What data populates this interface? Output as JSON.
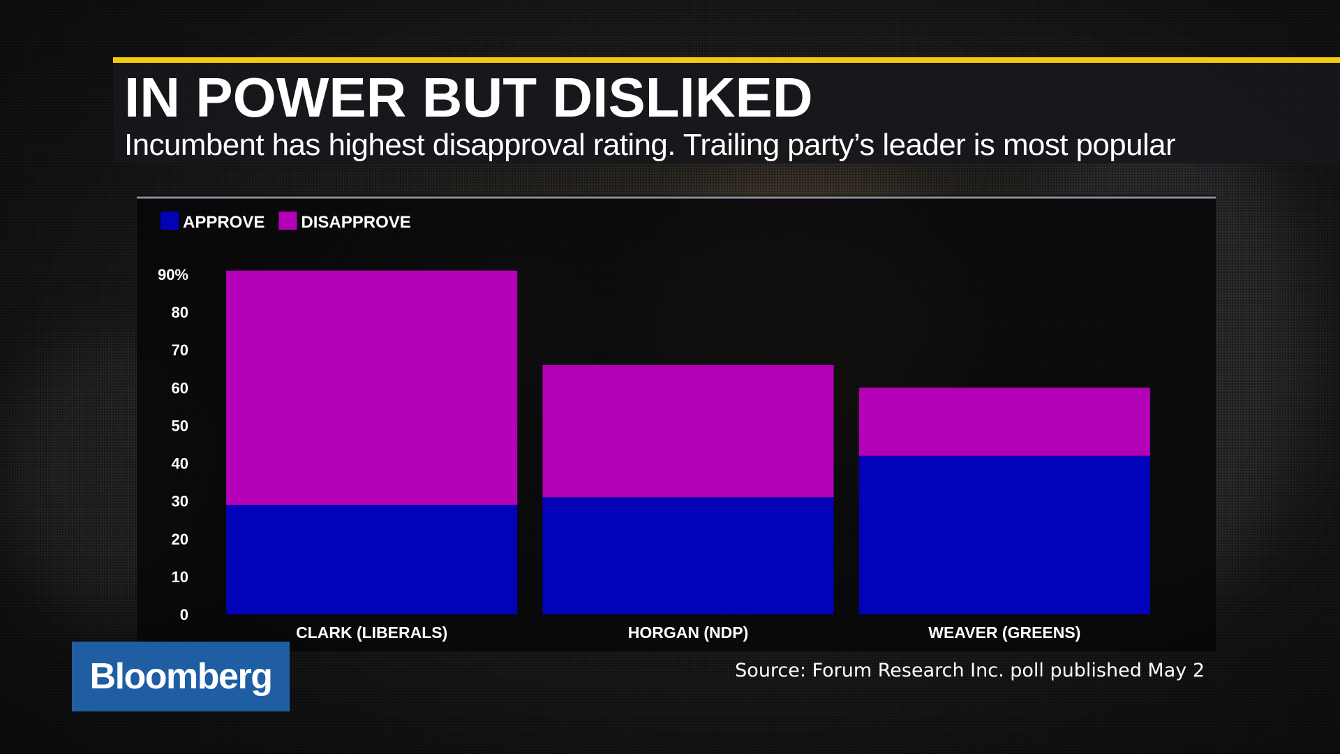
{
  "header": {
    "title": "IN POWER BUT DISLIKED",
    "subtitle": "Incumbent has highest disapproval rating. Trailing party’s leader is most popular"
  },
  "logo": "Bloomberg",
  "source": "Source: Forum Research Inc. poll published May 2",
  "colors": {
    "accent": "#f2cb0e",
    "approve": "#0202b8",
    "disapprove": "#b400b6",
    "logo_bg": "#1f5ea3"
  },
  "chart_data": {
    "type": "bar",
    "stacked": true,
    "categories": [
      "CLARK (LIBERALS)",
      "HORGAN (NDP)",
      "WEAVER (GREENS)"
    ],
    "series": [
      {
        "name": "APPROVE",
        "values": [
          29,
          31,
          42
        ]
      },
      {
        "name": "DISAPPROVE",
        "values": [
          62,
          35,
          18
        ]
      }
    ],
    "ylim": [
      0,
      90
    ],
    "yticks": [
      0,
      10,
      20,
      30,
      40,
      50,
      60,
      70,
      80,
      90
    ],
    "ytick_labels": [
      "0",
      "10",
      "20",
      "30",
      "40",
      "50",
      "60",
      "70",
      "80",
      "90%"
    ],
    "legend": "top-left",
    "grid": false
  }
}
